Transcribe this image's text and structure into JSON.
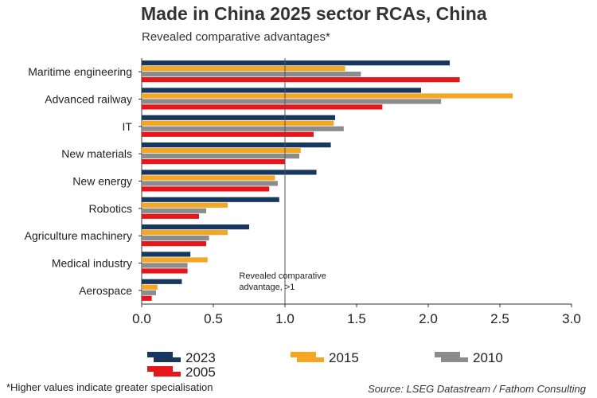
{
  "title": "Made in China 2025 sector RCAs, China",
  "subtitle": "Revealed comparative advantages*",
  "footnote": "*Higher values indicate greater specialisation",
  "source": "Source: LSEG Datastream / Fathom Consulting",
  "annotation": [
    "Revealed comparative",
    "advantage, >1"
  ],
  "chart_data": {
    "type": "bar",
    "orientation": "horizontal",
    "categories": [
      "Maritime engineering",
      "Advanced railway",
      "IT",
      "New materials",
      "New energy",
      "Robotics",
      "Agriculture machinery",
      "Medical industry",
      "Aerospace"
    ],
    "series": [
      {
        "name": "2023",
        "color": "#17375e",
        "values": [
          2.15,
          1.95,
          1.35,
          1.32,
          1.22,
          0.96,
          0.75,
          0.34,
          0.28
        ]
      },
      {
        "name": "2015",
        "color": "#f5a623",
        "values": [
          1.42,
          2.59,
          1.34,
          1.11,
          0.93,
          0.6,
          0.6,
          0.46,
          0.11
        ]
      },
      {
        "name": "2010",
        "color": "#8c8c8c",
        "values": [
          1.53,
          2.09,
          1.41,
          1.1,
          0.95,
          0.45,
          0.47,
          0.32,
          0.1
        ]
      },
      {
        "name": "2005",
        "color": "#e8161b",
        "values": [
          2.22,
          1.68,
          1.2,
          1.0,
          0.89,
          0.4,
          0.45,
          0.32,
          0.07
        ]
      }
    ],
    "xlim": [
      0,
      3.0
    ],
    "xticks": [
      "0.0",
      "0.5",
      "1.0",
      "1.5",
      "2.0",
      "2.5",
      "3.0"
    ],
    "reference_line": 1.0,
    "legend_position": "bottom"
  }
}
